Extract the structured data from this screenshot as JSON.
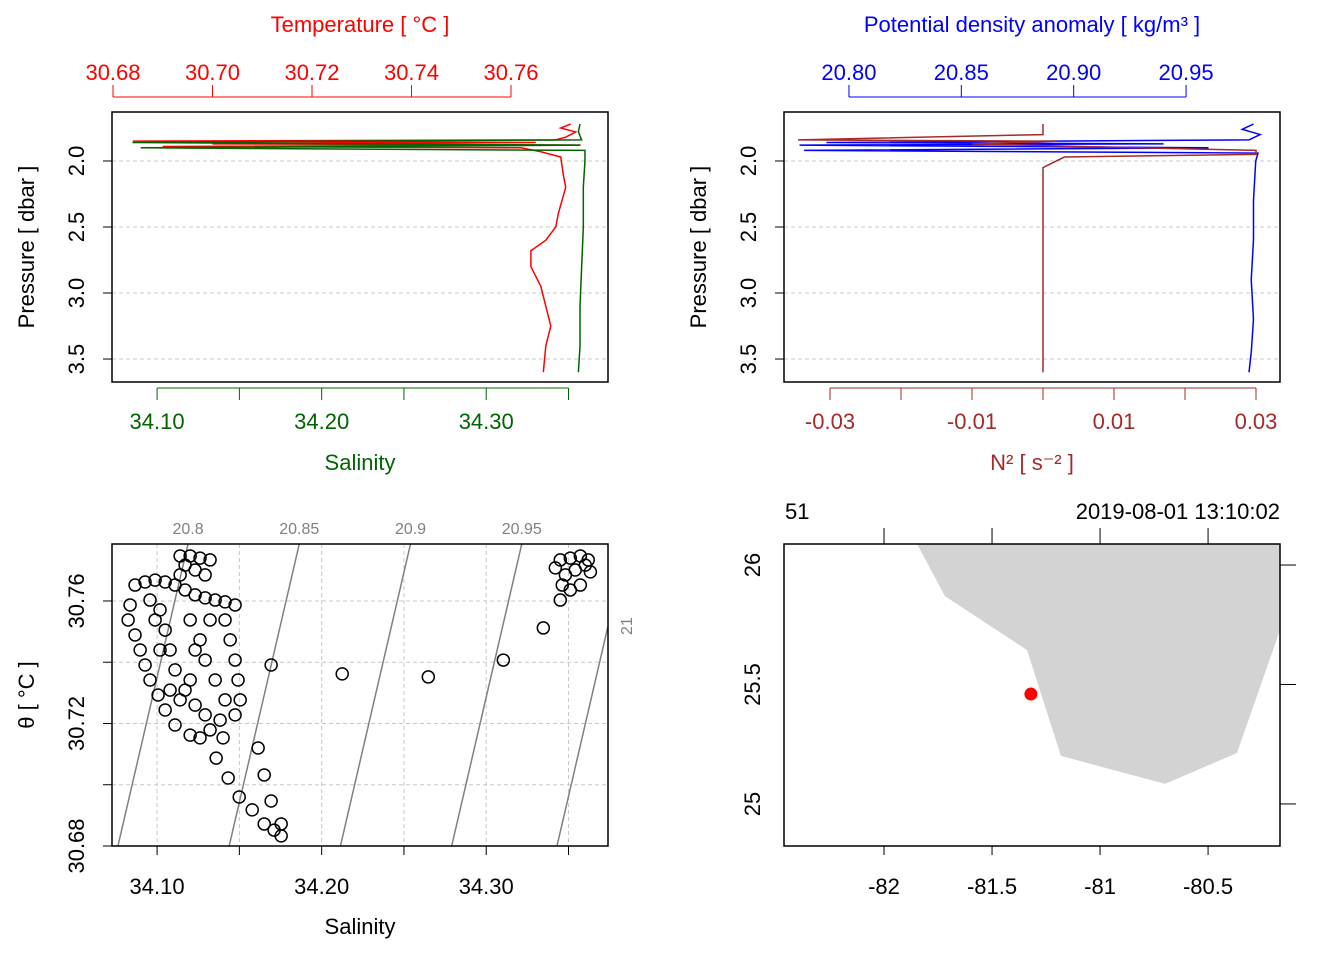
{
  "chart_data": [
    {
      "type": "profile",
      "ylabel": "Pressure [ dbar ]",
      "ylim": [
        3.674,
        1.629
      ],
      "yticks": [
        {
          "value": 2.0,
          "label": "2.0"
        },
        2.5,
        {
          "value": 3.0,
          "label": "3.0"
        },
        3.5
      ],
      "grid": true,
      "xlim": [
        34.0726,
        34.374
      ],
      "xticks": [
        {
          "value": 34.1,
          "label": "34.10"
        },
        {
          "value": 34.2,
          "label": "34.20"
        },
        {
          "value": 34.3,
          "label": "34.30"
        }
      ],
      "minor_xticks": [
        34.15,
        34.25,
        34.35
      ],
      "x2lim": [
        30.6798,
        30.7795
      ],
      "x2ticks": [
        30.68,
        {
          "value": 30.7,
          "label": "30.70"
        },
        30.72,
        30.74,
        30.76
      ],
      "series": [
        {
          "name": "Temperature [ °C ]",
          "color": "#ff0000",
          "axis": "x2",
          "pressure": [
            1.72,
            1.75,
            1.78,
            1.82,
            1.84,
            1.85,
            1.86,
            1.87,
            1.88,
            1.89,
            1.9,
            1.93,
            1.97,
            2.1,
            2.2,
            2.4,
            2.5,
            2.6,
            2.68,
            2.8,
            2.95,
            3.1,
            3.25,
            3.4,
            3.6
          ],
          "values": [
            30.772,
            30.77,
            30.773,
            30.771,
            30.769,
            30.684,
            30.765,
            30.7,
            30.774,
            30.69,
            30.762,
            30.766,
            30.77,
            30.7705,
            30.771,
            30.7695,
            30.769,
            30.767,
            30.764,
            30.764,
            30.766,
            30.767,
            30.768,
            30.767,
            30.7665
          ]
        },
        {
          "name": "Salinity",
          "color": "#006400",
          "axis": "x",
          "pressure": [
            1.72,
            1.78,
            1.84,
            1.86,
            1.88,
            1.9,
            1.92,
            2.0,
            2.2,
            2.5,
            2.8,
            3.1,
            3.4,
            3.6
          ],
          "values": [
            34.357,
            34.356,
            34.358,
            34.085,
            34.357,
            34.09,
            34.36,
            34.36,
            34.359,
            34.359,
            34.358,
            34.357,
            34.357,
            34.356
          ]
        }
      ]
    },
    {
      "type": "profile",
      "ylabel": "Pressure [ dbar ]",
      "ylim": [
        3.674,
        1.629
      ],
      "yticks": [
        {
          "value": 2.0,
          "label": "2.0"
        },
        2.5,
        {
          "value": 3.0,
          "label": "3.0"
        },
        3.5
      ],
      "grid": true,
      "xlim": [
        -0.03648,
        0.03338
      ],
      "xticks": [
        -0.03,
        -0.01,
        0.01,
        0.03
      ],
      "minor_xticks": [
        -0.02,
        0,
        0.02
      ],
      "x2lim": [
        20.7711,
        20.9918
      ],
      "x2ticks": [
        {
          "value": 20.8,
          "label": "20.80"
        },
        20.85,
        {
          "value": 20.9,
          "label": "20.90"
        },
        20.95
      ],
      "series": [
        {
          "name": "Potential density anomaly [ kg/m³ ]",
          "color": "#0000ff",
          "axis": "x2",
          "pressure": [
            1.72,
            1.76,
            1.8,
            1.84,
            1.86,
            1.87,
            1.88,
            1.9,
            1.92,
            1.94,
            2.0,
            2.3,
            2.6,
            2.9,
            3.2,
            3.45,
            3.6
          ],
          "values": [
            20.98,
            20.975,
            20.983,
            20.978,
            20.79,
            20.94,
            20.778,
            20.96,
            20.78,
            20.982,
            20.981,
            20.98,
            20.98,
            20.979,
            20.98,
            20.979,
            20.978
          ]
        },
        {
          "name": "N² [ s⁻² ]",
          "color": "#a52a2a",
          "axis": "x",
          "pressure": [
            1.72,
            1.8,
            1.84,
            1.85,
            1.87,
            1.89,
            1.92,
            1.95,
            1.97,
            2.05,
            2.5,
            3.0,
            3.6
          ],
          "values": [
            0,
            0,
            -0.0345,
            0.002,
            -0.01,
            0.005,
            0.03,
            0.03,
            0.003,
            0,
            0,
            0,
            0
          ]
        }
      ]
    },
    {
      "type": "scatter",
      "xlabel": "Salinity",
      "ylabel": "θ [ °C ]",
      "xlim": [
        34.0726,
        34.374
      ],
      "ylim": [
        30.68,
        30.7786
      ],
      "xticks": [
        {
          "value": 34.1,
          "label": "34.10"
        },
        {
          "value": 34.2,
          "label": "34.20"
        },
        {
          "value": 34.3,
          "label": "34.30"
        }
      ],
      "minor_xticks": [
        34.15,
        34.25,
        34.35
      ],
      "yticks": [
        30.68,
        30.72,
        30.76
      ],
      "minor_yticks": [
        30.7,
        30.74
      ],
      "grid": true,
      "color": "#000000",
      "isopycnals": [
        {
          "label": "20.8",
          "salinity": [
            34.0762,
            34.1188
          ],
          "theta": [
            30.68,
            30.7786
          ]
        },
        {
          "label": "20.85",
          "salinity": [
            34.1438,
            34.1864
          ],
          "theta": [
            30.68,
            30.7786
          ]
        },
        {
          "label": "20.9",
          "salinity": [
            34.2114,
            34.254
          ],
          "theta": [
            30.68,
            30.7786
          ]
        },
        {
          "label": "20.95",
          "salinity": [
            34.279,
            34.3216
          ],
          "theta": [
            30.68,
            30.7786
          ]
        },
        {
          "label": "21",
          "salinity": [
            34.343,
            34.374
          ],
          "theta": [
            30.68,
            30.7518
          ]
        }
      ],
      "x": [
        34.0836,
        34.0824,
        34.0866,
        34.0897,
        34.0927,
        34.0957,
        34.1006,
        34.1049,
        34.1109,
        34.1201,
        34.1261,
        34.1322,
        34.0866,
        34.0927,
        34.0988,
        34.1049,
        34.1109,
        34.117,
        34.1231,
        34.1292,
        34.1353,
        34.1413,
        34.1474,
        34.114,
        34.1201,
        34.1261,
        34.1322,
        34.117,
        34.1231,
        34.1292,
        34.114,
        34.1018,
        34.1049,
        34.1079,
        34.1109,
        34.117,
        34.1231,
        34.1292,
        34.1383,
        34.1474,
        34.1505,
        34.1492,
        34.1474,
        34.1444,
        34.1413,
        34.1322,
        34.1261,
        34.1292,
        34.1353,
        34.1413,
        34.0957,
        34.0988,
        34.1018,
        34.1079,
        34.114,
        34.1201,
        34.1231,
        34.1201,
        34.1614,
        34.1651,
        34.1499,
        34.1578,
        34.1693,
        34.1651,
        34.1711,
        34.1754,
        34.1754,
        34.1359,
        34.1432,
        34.1401,
        34.1693,
        34.2125,
        34.2648,
        34.3104,
        34.3347,
        34.345,
        34.345,
        34.3511,
        34.3572,
        34.3602,
        34.3541,
        34.3481,
        34.342,
        34.3633,
        34.3572,
        34.3511,
        34.3462,
        34.362
      ],
      "y": [
        30.7587,
        30.7538,
        30.7489,
        30.744,
        30.7391,
        30.7342,
        30.7293,
        30.7244,
        30.7195,
        30.7162,
        30.7153,
        30.7179,
        30.7652,
        30.7662,
        30.7668,
        30.7662,
        30.7652,
        30.7636,
        30.762,
        30.761,
        30.7603,
        30.7597,
        30.7587,
        30.7747,
        30.7747,
        30.774,
        30.7734,
        30.7717,
        30.7701,
        30.7685,
        30.7685,
        30.7571,
        30.7505,
        30.744,
        30.7375,
        30.7309,
        30.726,
        30.7228,
        30.7211,
        30.7228,
        30.7277,
        30.7342,
        30.7407,
        30.7473,
        30.7538,
        30.7538,
        30.7473,
        30.7407,
        30.7342,
        30.7277,
        30.7603,
        30.7538,
        30.744,
        30.7309,
        30.7277,
        30.7342,
        30.744,
        30.7538,
        30.712,
        30.7032,
        30.696,
        30.6918,
        30.6947,
        30.6872,
        30.6852,
        30.6833,
        30.6872,
        30.7087,
        30.7022,
        30.7153,
        30.7391,
        30.7362,
        30.7352,
        30.7407,
        30.7512,
        30.7603,
        30.7734,
        30.774,
        30.7747,
        30.7717,
        30.7701,
        30.7685,
        30.7708,
        30.7695,
        30.7652,
        30.7636,
        30.7652,
        30.7734
      ]
    },
    {
      "type": "map",
      "top_left": "51",
      "top_right": "2019-08-01 13:10:02",
      "xlim": [
        -82.463,
        -80.167
      ],
      "ylim": [
        24.824,
        26.088
      ],
      "xticks": [
        -82,
        -81.5,
        -81,
        -80.5
      ],
      "yticks": [
        25,
        25.5,
        26
      ],
      "land_color": "#d3d3d3",
      "coastline": {
        "lon": [
          -81.847,
          -81.718,
          -81.338,
          -81.181,
          -80.699,
          -80.366,
          -80.167,
          -80.167
        ],
        "lat": [
          26.088,
          25.87,
          25.644,
          25.201,
          25.084,
          25.213,
          25.728,
          26.088
        ]
      },
      "station": {
        "lon": -81.32,
        "lat": 25.46,
        "color": "#ff0000"
      }
    }
  ]
}
